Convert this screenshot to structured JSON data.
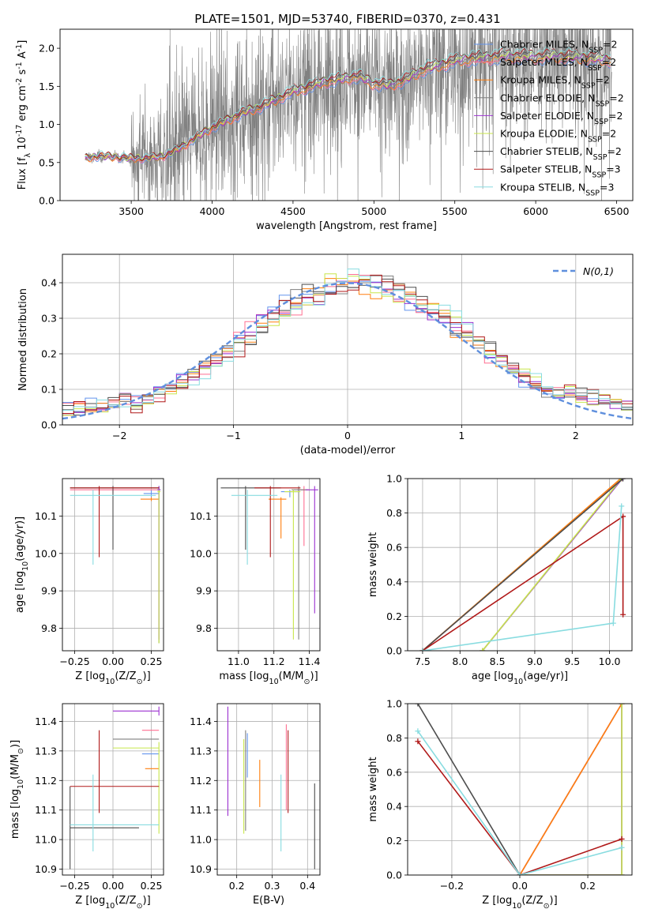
{
  "title": "PLATE=1501, MJD=53740, FIBERID=0370, z=0.431",
  "series": [
    {
      "name": "Chabrier MILES, N$_{SSP}$=2",
      "base": "Chabrier MILES, N",
      "sub": "SSP",
      "tail": "=2",
      "color": "#6495ed"
    },
    {
      "name": "Salpeter MILES, N$_{SSP}$=2",
      "base": "Salpeter MILES, N",
      "sub": "SSP",
      "tail": "=2",
      "color": "#ff6f91"
    },
    {
      "name": "Kroupa MILES, N$_{SSP}$=2",
      "base": "Kroupa MILES, N",
      "sub": "SSP",
      "tail": "=2",
      "color": "#ff7f0e"
    },
    {
      "name": "Chabrier ELODIE, N$_{SSP}$=2",
      "base": "Chabrier ELODIE, N",
      "sub": "SSP",
      "tail": "=2",
      "color": "#7f7f7f"
    },
    {
      "name": "Salpeter ELODIE, N$_{SSP}$=2",
      "base": "Salpeter ELODIE, N",
      "sub": "SSP",
      "tail": "=2",
      "color": "#9b30d0"
    },
    {
      "name": "Kroupa ELODIE, N$_{SSP}$=2",
      "base": "Kroupa ELODIE, N",
      "sub": "SSP",
      "tail": "=2",
      "color": "#c8e64b"
    },
    {
      "name": "Chabrier STELIB, N$_{SSP}$=2",
      "base": "Chabrier STELIB, N",
      "sub": "SSP",
      "tail": "=2",
      "color": "#4d4d4d"
    },
    {
      "name": "Salpeter STELIB, N$_{SSP}$=3",
      "base": "Salpeter STELIB, N",
      "sub": "SSP",
      "tail": "=3",
      "color": "#b01818"
    },
    {
      "name": "Kroupa STELIB, N$_{SSP}$=3",
      "base": "Kroupa STELIB, N",
      "sub": "SSP",
      "tail": "=3",
      "color": "#88dce0"
    }
  ],
  "data_color": "#808080",
  "normal_color": "#5f8fdd",
  "chart_data": [
    {
      "id": "spectrum",
      "type": "line",
      "xlabel": "wavelength [Angstrom, rest frame]",
      "ylabel": "Flux [f$_\\lambda$ 10$^{-17}$ erg cm$^{-2}$ s$^{-1}$ A$^{-1}$]",
      "xlim": [
        3060,
        6600
      ],
      "ylim": [
        0,
        2.25
      ],
      "xticks": [
        3500,
        4000,
        4500,
        5000,
        5500,
        6000,
        6500
      ],
      "yticks": [
        0.0,
        0.5,
        1.0,
        1.5,
        2.0
      ],
      "grid": false,
      "legend": "upper right",
      "data_spectrum_range": [
        3215,
        6470
      ],
      "model_continuum": {
        "x": [
          3215,
          3300,
          3400,
          3500,
          3600,
          3700,
          3800,
          3900,
          4000,
          4100,
          4200,
          4300,
          4400,
          4500,
          4600,
          4700,
          4800,
          4900,
          5000,
          5100,
          5200,
          5300,
          5400,
          5500,
          5600,
          5700,
          5800,
          5900,
          6000,
          6100,
          6200,
          6300,
          6400,
          6470
        ],
        "y": [
          0.55,
          0.58,
          0.57,
          0.55,
          0.55,
          0.58,
          0.68,
          0.82,
          0.95,
          1.05,
          1.15,
          1.22,
          1.32,
          1.42,
          1.48,
          1.55,
          1.58,
          1.62,
          1.52,
          1.5,
          1.58,
          1.7,
          1.76,
          1.82,
          1.85,
          1.86,
          1.88,
          1.88,
          1.87,
          1.88,
          1.87,
          1.86,
          1.84,
          1.84
        ]
      }
    },
    {
      "id": "residuals",
      "type": "histogram",
      "xlabel": "(data-model)/error",
      "ylabel": "Normed distribution",
      "xlim": [
        -2.5,
        2.5
      ],
      "ylim": [
        0,
        0.48
      ],
      "xticks": [
        -2,
        -1,
        0,
        1,
        2
      ],
      "yticks": [
        0.0,
        0.1,
        0.2,
        0.3,
        0.4
      ],
      "grid": true,
      "legend": "upper right",
      "legend_label": "N(0,1)",
      "bin_width": 0.1,
      "model_center": 0.1,
      "model_sigma": 1.0
    },
    {
      "id": "age_vs_Z",
      "type": "errorbar",
      "xlabel": "Z [log$_{10}$(Z/Z$_\\odot$)]",
      "ylabel": "age  [log$_{10}$(age/yr)]",
      "xlim": [
        -0.33,
        0.33
      ],
      "ylim": [
        9.74,
        10.2
      ],
      "xticks": [
        -0.25,
        0.0,
        0.25
      ],
      "yticks": [
        9.8,
        9.9,
        10.0,
        10.1
      ],
      "grid": true,
      "points": [
        {
          "s": 0,
          "x": 0.25,
          "y": 10.16,
          "xl": 0.2,
          "xh": 0.3,
          "yl": 10.15,
          "yh": 10.17
        },
        {
          "s": 1,
          "x": 0.0,
          "y": 10.17,
          "xl": -0.28,
          "xh": 0.3,
          "yl": 10.16,
          "yh": 10.18
        },
        {
          "s": 2,
          "x": 0.25,
          "y": 10.145,
          "xl": 0.18,
          "xh": 0.3,
          "yl": 10.14,
          "yh": 10.15
        },
        {
          "s": 3,
          "x": 0.3,
          "y": 10.17,
          "xl": 0.29,
          "xh": 0.31,
          "yl": 9.76,
          "yh": 10.18
        },
        {
          "s": 4,
          "x": 0.3,
          "y": 10.17,
          "xl": 0.29,
          "xh": 0.31,
          "yl": 9.77,
          "yh": 10.18
        },
        {
          "s": 5,
          "x": 0.3,
          "y": 10.165,
          "xl": 0.29,
          "xh": 0.31,
          "yl": 9.76,
          "yh": 10.17
        },
        {
          "s": 6,
          "x": 0.0,
          "y": 10.175,
          "xl": -0.28,
          "xh": 0.3,
          "yl": 10.01,
          "yh": 10.18
        },
        {
          "s": 7,
          "x": -0.09,
          "y": 10.175,
          "xl": -0.28,
          "xh": 0.3,
          "yl": 9.99,
          "yh": 10.18
        },
        {
          "s": 8,
          "x": -0.13,
          "y": 10.155,
          "xl": -0.28,
          "xh": 0.28,
          "yl": 9.97,
          "yh": 10.17
        }
      ]
    },
    {
      "id": "age_vs_mass",
      "type": "errorbar",
      "xlabel": "mass [log$_{10}$(M/M$_\\odot$)]",
      "ylabel": "",
      "xlim": [
        10.88,
        11.46
      ],
      "ylim": [
        9.74,
        10.2
      ],
      "xticks": [
        11.0,
        11.2,
        11.4
      ],
      "yticks": [
        9.8,
        9.9,
        10.0,
        10.1
      ],
      "grid": true,
      "points": [
        {
          "s": 0,
          "x": 11.29,
          "y": 10.165,
          "xl": 11.24,
          "xh": 11.34,
          "yl": 10.15,
          "yh": 10.17
        },
        {
          "s": 1,
          "x": 11.37,
          "y": 10.17,
          "xl": 11.33,
          "xh": 11.4,
          "yl": 10.02,
          "yh": 10.18
        },
        {
          "s": 2,
          "x": 11.24,
          "y": 10.145,
          "xl": 11.17,
          "xh": 11.27,
          "yl": 10.04,
          "yh": 10.15
        },
        {
          "s": 3,
          "x": 11.34,
          "y": 10.17,
          "xl": 11.3,
          "xh": 11.39,
          "yl": 9.77,
          "yh": 10.18
        },
        {
          "s": 4,
          "x": 11.43,
          "y": 10.17,
          "xl": 11.38,
          "xh": 11.45,
          "yl": 9.84,
          "yh": 10.18
        },
        {
          "s": 5,
          "x": 11.31,
          "y": 10.165,
          "xl": 11.26,
          "xh": 11.35,
          "yl": 9.77,
          "yh": 10.17
        },
        {
          "s": 6,
          "x": 11.04,
          "y": 10.175,
          "xl": 10.9,
          "xh": 11.24,
          "yl": 10.01,
          "yh": 10.18
        },
        {
          "s": 7,
          "x": 11.18,
          "y": 10.175,
          "xl": 11.09,
          "xh": 11.35,
          "yl": 9.99,
          "yh": 10.18
        },
        {
          "s": 8,
          "x": 11.05,
          "y": 10.155,
          "xl": 10.96,
          "xh": 11.22,
          "yl": 9.97,
          "yh": 10.17
        }
      ]
    },
    {
      "id": "weight_vs_age",
      "type": "line",
      "xlabel": "age  [log$_{10}$(age/yr)]",
      "ylabel": "mass weight",
      "xlim": [
        7.3,
        10.3
      ],
      "ylim": [
        0,
        1
      ],
      "xticks": [
        7.5,
        8.0,
        8.5,
        9.0,
        9.5,
        10.0
      ],
      "yticks": [
        0.0,
        0.2,
        0.4,
        0.6,
        0.8,
        1.0
      ],
      "grid": true,
      "lines": [
        {
          "s": 0,
          "x": [
            7.5,
            10.17
          ],
          "y": [
            0.0,
            1.0
          ]
        },
        {
          "s": 1,
          "x": [
            7.5,
            10.17
          ],
          "y": [
            0.0,
            1.0
          ]
        },
        {
          "s": 2,
          "x": [
            7.5,
            10.15
          ],
          "y": [
            0.0,
            1.0
          ]
        },
        {
          "s": 3,
          "x": [
            8.3,
            10.17
          ],
          "y": [
            0.0,
            1.0
          ]
        },
        {
          "s": 4,
          "x": [
            8.3,
            10.17
          ],
          "y": [
            0.0,
            1.0
          ]
        },
        {
          "s": 5,
          "x": [
            8.3,
            10.16
          ],
          "y": [
            0.0,
            1.0
          ]
        },
        {
          "s": 6,
          "x": [
            7.5,
            10.18
          ],
          "y": [
            0.0,
            1.0
          ]
        },
        {
          "s": 7,
          "x": [
            7.5,
            10.18,
            10.18
          ],
          "y": [
            0.0,
            0.78,
            0.21
          ]
        },
        {
          "s": 8,
          "x": [
            7.5,
            10.05,
            10.16
          ],
          "y": [
            0.0,
            0.16,
            0.84
          ]
        }
      ]
    },
    {
      "id": "mass_vs_Z",
      "type": "errorbar",
      "xlabel": "Z [log$_{10}$(Z/Z$_\\odot$)]",
      "ylabel": "mass [log$_{10}$(M/M$_\\odot$)]",
      "xlim": [
        -0.33,
        0.33
      ],
      "ylim": [
        10.88,
        11.46
      ],
      "xticks": [
        -0.25,
        0.0,
        0.25
      ],
      "yticks": [
        10.9,
        11.0,
        11.1,
        11.2,
        11.3,
        11.4
      ],
      "grid": true,
      "points": [
        {
          "s": 0,
          "x": 0.25,
          "y": 11.29,
          "xl": 0.19,
          "xh": 0.3,
          "yl": 11.29,
          "yh": 11.29
        },
        {
          "s": 1,
          "x": 0.25,
          "y": 11.37,
          "xl": 0.19,
          "xh": 0.3,
          "yl": 11.37,
          "yh": 11.37
        },
        {
          "s": 2,
          "x": 0.25,
          "y": 11.24,
          "xl": 0.21,
          "xh": 0.3,
          "yl": 11.24,
          "yh": 11.24
        },
        {
          "s": 3,
          "x": 0.3,
          "y": 11.34,
          "xl": 0.0,
          "xh": 0.3,
          "yl": 11.34,
          "yh": 11.34
        },
        {
          "s": 4,
          "x": 0.3,
          "y": 11.435,
          "xl": 0.0,
          "xh": 0.3,
          "yl": 11.42,
          "yh": 11.45
        },
        {
          "s": 5,
          "x": 0.3,
          "y": 11.31,
          "xl": 0.0,
          "xh": 0.3,
          "yl": 11.02,
          "yh": 11.33
        },
        {
          "s": 6,
          "x": -0.28,
          "y": 11.04,
          "xl": -0.28,
          "xh": 0.17,
          "yl": 10.9,
          "yh": 11.18
        },
        {
          "s": 7,
          "x": -0.09,
          "y": 11.18,
          "xl": -0.28,
          "xh": 0.3,
          "yl": 11.09,
          "yh": 11.37
        },
        {
          "s": 8,
          "x": -0.13,
          "y": 11.05,
          "xl": -0.28,
          "xh": 0.3,
          "yl": 10.96,
          "yh": 11.22
        }
      ]
    },
    {
      "id": "mass_vs_ebv",
      "type": "errorbar",
      "xlabel": "E(B-V)",
      "ylabel": "",
      "xlim": [
        0.145,
        0.435
      ],
      "ylim": [
        10.88,
        11.46
      ],
      "xticks": [
        0.2,
        0.3,
        0.4
      ],
      "yticks": [
        10.9,
        11.0,
        11.1,
        11.2,
        11.3,
        11.4
      ],
      "grid": true,
      "points": [
        {
          "s": 0,
          "x": 0.23,
          "y": 11.29,
          "xl": 0.23,
          "xh": 0.23,
          "yl": 11.21,
          "yh": 11.36
        },
        {
          "s": 1,
          "x": 0.34,
          "y": 11.37,
          "xl": 0.34,
          "xh": 0.34,
          "yl": 11.1,
          "yh": 11.39
        },
        {
          "s": 2,
          "x": 0.265,
          "y": 11.24,
          "xl": 0.265,
          "xh": 0.265,
          "yl": 11.11,
          "yh": 11.27
        },
        {
          "s": 3,
          "x": 0.225,
          "y": 11.34,
          "xl": 0.225,
          "xh": 0.225,
          "yl": 11.03,
          "yh": 11.37
        },
        {
          "s": 4,
          "x": 0.175,
          "y": 11.435,
          "xl": 0.175,
          "xh": 0.175,
          "yl": 11.08,
          "yh": 11.45
        },
        {
          "s": 5,
          "x": 0.22,
          "y": 11.31,
          "xl": 0.22,
          "xh": 0.22,
          "yl": 11.02,
          "yh": 11.34
        },
        {
          "s": 6,
          "x": 0.42,
          "y": 11.04,
          "xl": 0.42,
          "xh": 0.42,
          "yl": 10.9,
          "yh": 11.19
        },
        {
          "s": 7,
          "x": 0.345,
          "y": 11.18,
          "xl": 0.345,
          "xh": 0.345,
          "yl": 11.09,
          "yh": 11.37
        },
        {
          "s": 8,
          "x": 0.325,
          "y": 11.05,
          "xl": 0.325,
          "xh": 0.325,
          "yl": 10.96,
          "yh": 11.22
        }
      ]
    },
    {
      "id": "weight_vs_Z",
      "type": "line",
      "xlabel": "Z [log$_{10}$(Z/Z$_\\odot$)]",
      "ylabel": "mass weight",
      "xlim": [
        -0.33,
        0.33
      ],
      "ylim": [
        0,
        1
      ],
      "xticks": [
        -0.2,
        0.0,
        0.2
      ],
      "yticks": [
        0.0,
        0.2,
        0.4,
        0.6,
        0.8,
        1.0
      ],
      "grid": true,
      "lines": [
        {
          "s": 0,
          "x": [
            0.0,
            0.3
          ],
          "y": [
            0.0,
            1.0
          ]
        },
        {
          "s": 1,
          "x": [
            0.0,
            0.3
          ],
          "y": [
            0.0,
            1.0
          ]
        },
        {
          "s": 2,
          "x": [
            0.0,
            0.3
          ],
          "y": [
            0.0,
            1.0
          ]
        },
        {
          "s": 3,
          "x": [
            0.0,
            0.3,
            0.3
          ],
          "y": [
            0.0,
            0.0,
            1.0
          ]
        },
        {
          "s": 4,
          "x": [
            0.0,
            0.3,
            0.3
          ],
          "y": [
            0.0,
            0.0,
            1.0
          ]
        },
        {
          "s": 5,
          "x": [
            0.0,
            0.3,
            0.3
          ],
          "y": [
            0.0,
            0.0,
            1.0
          ]
        },
        {
          "s": 6,
          "x": [
            -0.3,
            0.0
          ],
          "y": [
            1.0,
            0.0
          ]
        },
        {
          "s": 7,
          "x": [
            -0.3,
            0.0,
            0.3
          ],
          "y": [
            0.78,
            0.0,
            0.21
          ]
        },
        {
          "s": 8,
          "x": [
            -0.3,
            0.0,
            0.3
          ],
          "y": [
            0.84,
            0.0,
            0.16
          ]
        }
      ]
    }
  ]
}
